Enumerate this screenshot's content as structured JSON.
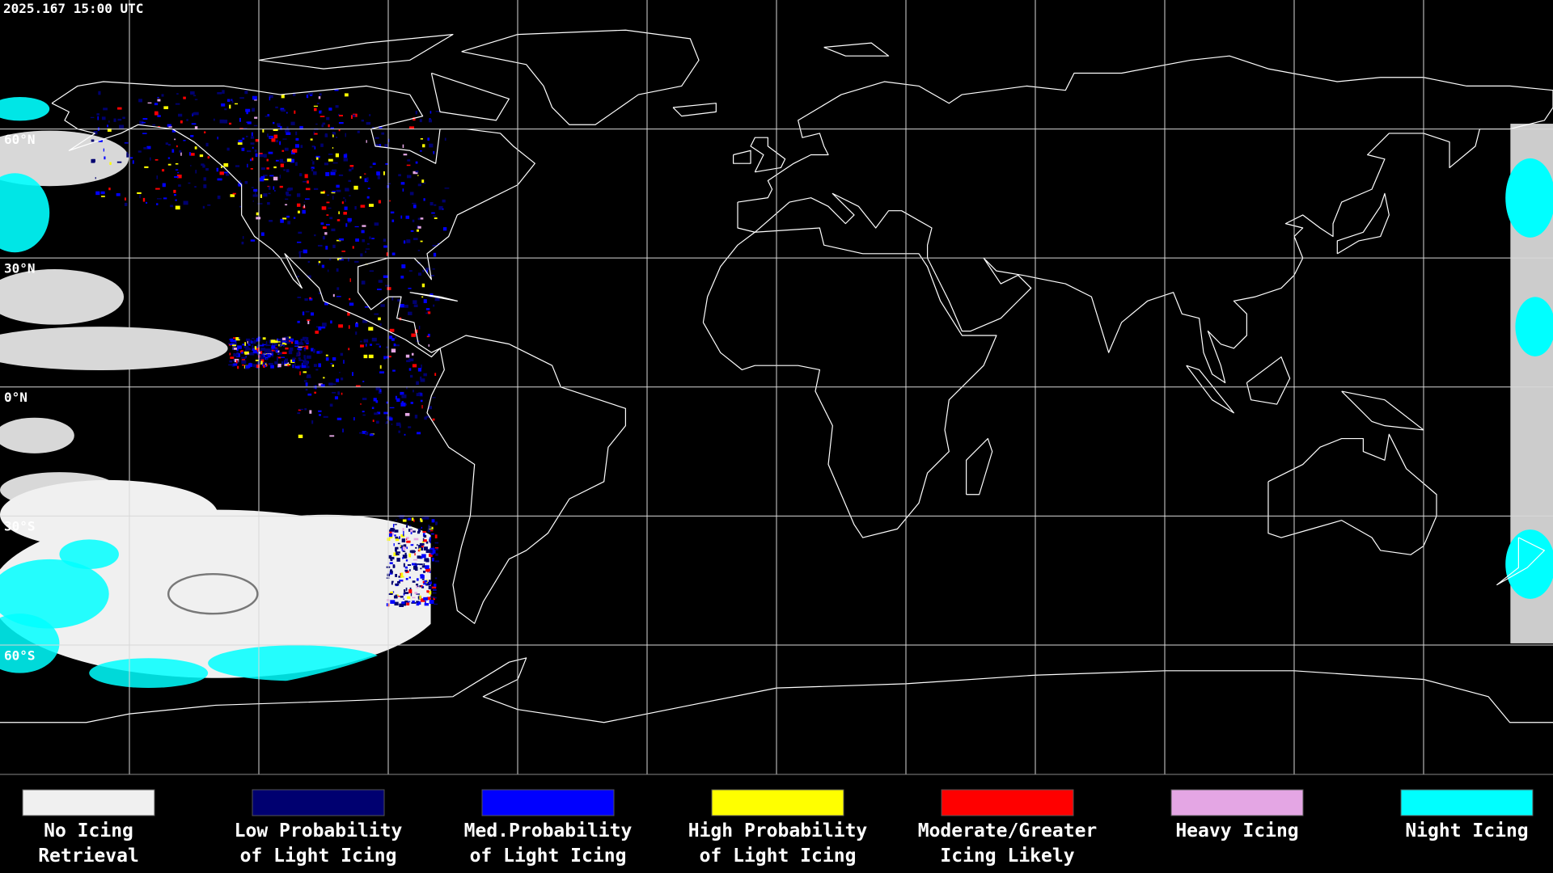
{
  "header": {
    "timestamp": "2025.167 15:00 UTC"
  },
  "map": {
    "latitude_labels": [
      "60°N",
      "30°N",
      "0°N",
      "30°S",
      "60°S"
    ]
  },
  "legend": {
    "items": [
      {
        "label": [
          "No Icing",
          "Retrieval"
        ],
        "color": "#f0f0f0"
      },
      {
        "label": [
          "Low Probability",
          "of Light Icing"
        ],
        "color": "#000070"
      },
      {
        "label": [
          "Med.Probability",
          "of Light Icing"
        ],
        "color": "#0000ff"
      },
      {
        "label": [
          "High Probability",
          "of Light Icing"
        ],
        "color": "#ffff00"
      },
      {
        "label": [
          "Moderate/Greater",
          "Icing Likely"
        ],
        "color": "#ff0000"
      },
      {
        "label": [
          "Heavy Icing"
        ],
        "color": "#e4a6e4"
      },
      {
        "label": [
          "Night Icing"
        ],
        "color": "#00ffff"
      }
    ]
  }
}
